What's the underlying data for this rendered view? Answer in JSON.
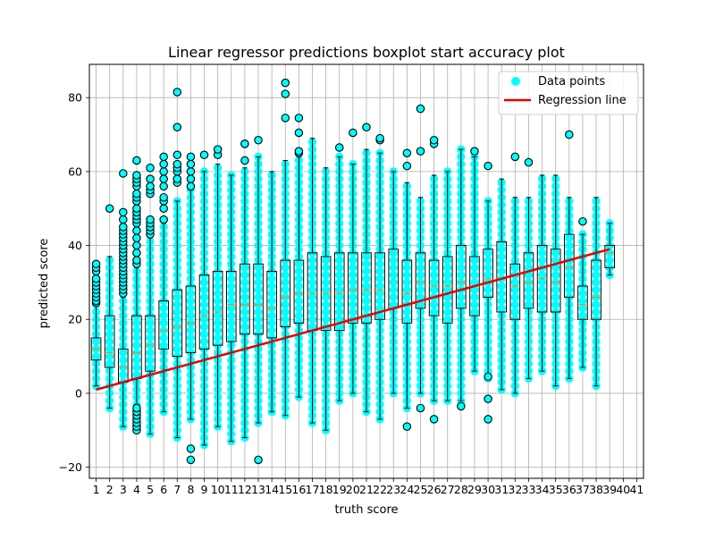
{
  "chart_data": {
    "type": "box",
    "title": "Linear regressor predictions boxplot start accuracy plot",
    "xlabel": "truth score",
    "ylabel": "predicted score",
    "x_ticks": [
      1,
      2,
      3,
      4,
      5,
      6,
      7,
      8,
      9,
      10,
      11,
      12,
      13,
      14,
      15,
      16,
      17,
      18,
      19,
      20,
      21,
      22,
      23,
      24,
      25,
      26,
      27,
      28,
      29,
      30,
      31,
      32,
      33,
      34,
      35,
      36,
      37,
      38,
      39,
      40,
      41
    ],
    "y_ticks": [
      -20,
      0,
      20,
      40,
      60,
      80
    ],
    "xlim": [
      0.5,
      41.5
    ],
    "ylim": [
      -23,
      89
    ],
    "grid": true,
    "legend": {
      "position": "top-right",
      "entries": [
        {
          "label": "Data points",
          "marker": "circle",
          "color": "#00ffff"
        },
        {
          "label": "Regression line",
          "marker": "line",
          "color": "#e00000"
        }
      ]
    },
    "colors": {
      "points": "#00ffff",
      "box": "#000000",
      "median": "#ff7f0e",
      "regression": "#e00000"
    },
    "boxes": [
      {
        "x": 1,
        "q1": 9,
        "median": 12,
        "q3": 15,
        "whislo": 2,
        "whishi": 24,
        "fliers": [
          24.5,
          25,
          26,
          27,
          28,
          29,
          30,
          31,
          33,
          34,
          35
        ]
      },
      {
        "x": 2,
        "q1": 7,
        "median": 11,
        "q3": 21,
        "whislo": -4,
        "whishi": 37,
        "fliers": [
          50
        ]
      },
      {
        "x": 3,
        "q1": 3,
        "median": 7,
        "q3": 12,
        "whislo": -9,
        "whishi": 26,
        "fliers": [
          27,
          28,
          29,
          30,
          31,
          32,
          33,
          34,
          35,
          36,
          37,
          38,
          39,
          40,
          41,
          42,
          43,
          44,
          45,
          47,
          49,
          59.5
        ]
      },
      {
        "x": 4,
        "q1": 4,
        "median": 11,
        "q3": 21,
        "whislo": -3,
        "whishi": 34,
        "fliers": [
          -10,
          -9,
          -8,
          -7,
          -6,
          -5,
          -4,
          35,
          36,
          38,
          40,
          42,
          44,
          46,
          47,
          48,
          49,
          50,
          52,
          53,
          54,
          56,
          57,
          58,
          59,
          63
        ]
      },
      {
        "x": 5,
        "q1": 6,
        "median": 13,
        "q3": 21,
        "whislo": -11,
        "whishi": 42,
        "fliers": [
          43,
          44,
          45,
          46,
          47,
          54,
          55,
          56,
          58,
          61
        ]
      },
      {
        "x": 6,
        "q1": 12,
        "median": 17,
        "q3": 25,
        "whislo": -5,
        "whishi": 46,
        "fliers": [
          47,
          50,
          52,
          53,
          56,
          58,
          60,
          62,
          64
        ]
      },
      {
        "x": 7,
        "q1": 10,
        "median": 18,
        "q3": 28,
        "whislo": -12,
        "whishi": 52,
        "fliers": [
          57,
          58,
          60,
          61,
          62,
          64.5,
          72,
          81.5
        ]
      },
      {
        "x": 8,
        "q1": 11,
        "median": 19,
        "q3": 29,
        "whislo": -7,
        "whishi": 55,
        "fliers": [
          -18,
          -15,
          56,
          58,
          60,
          62,
          64
        ]
      },
      {
        "x": 9,
        "q1": 12,
        "median": 21,
        "q3": 32,
        "whislo": -14,
        "whishi": 60,
        "fliers": [
          64.5
        ]
      },
      {
        "x": 10,
        "q1": 13,
        "median": 22,
        "q3": 33,
        "whislo": -9,
        "whishi": 62,
        "fliers": [
          64.5,
          66
        ]
      },
      {
        "x": 11,
        "q1": 14,
        "median": 24,
        "q3": 33,
        "whislo": -13,
        "whishi": 59,
        "fliers": []
      },
      {
        "x": 12,
        "q1": 16,
        "median": 24,
        "q3": 35,
        "whislo": -12,
        "whishi": 61,
        "fliers": [
          63,
          67.5,
          67.5
        ]
      },
      {
        "x": 13,
        "q1": 16,
        "median": 24,
        "q3": 35,
        "whislo": -8,
        "whishi": 64,
        "fliers": [
          -18,
          68.5
        ]
      },
      {
        "x": 14,
        "q1": 15,
        "median": 23,
        "q3": 33,
        "whislo": -5,
        "whishi": 60,
        "fliers": []
      },
      {
        "x": 15,
        "q1": 18,
        "median": 26,
        "q3": 36,
        "whislo": -6,
        "whishi": 63,
        "fliers": [
          74.5,
          81,
          84
        ]
      },
      {
        "x": 16,
        "q1": 19,
        "median": 27,
        "q3": 36,
        "whislo": -1,
        "whishi": 64,
        "fliers": [
          65,
          65.5,
          70.5,
          74.5
        ]
      },
      {
        "x": 17,
        "q1": 17,
        "median": 27,
        "q3": 38,
        "whislo": -8,
        "whishi": 69,
        "fliers": []
      },
      {
        "x": 18,
        "q1": 17,
        "median": 27,
        "q3": 37,
        "whislo": -10,
        "whishi": 61,
        "fliers": []
      },
      {
        "x": 19,
        "q1": 17,
        "median": 27,
        "q3": 38,
        "whislo": -2,
        "whishi": 64,
        "fliers": [
          66.5
        ]
      },
      {
        "x": 20,
        "q1": 19,
        "median": 28,
        "q3": 38,
        "whislo": 0,
        "whishi": 62,
        "fliers": [
          70.5
        ]
      },
      {
        "x": 21,
        "q1": 19,
        "median": 28,
        "q3": 38,
        "whislo": -5,
        "whishi": 66,
        "fliers": [
          72
        ]
      },
      {
        "x": 22,
        "q1": 20,
        "median": 28,
        "q3": 38,
        "whislo": -7,
        "whishi": 65,
        "fliers": [
          68.5,
          69
        ]
      },
      {
        "x": 23,
        "q1": 23,
        "median": 23,
        "q3": 39,
        "whislo": 0,
        "whishi": 60,
        "fliers": []
      },
      {
        "x": 24,
        "q1": 19,
        "median": 27,
        "q3": 36,
        "whislo": -4,
        "whishi": 57,
        "fliers": [
          -9,
          61.5,
          65
        ]
      },
      {
        "x": 25,
        "q1": 23,
        "median": 30,
        "q3": 38,
        "whislo": 0,
        "whishi": 53,
        "fliers": [
          -4,
          65.5,
          77
        ]
      },
      {
        "x": 26,
        "q1": 21,
        "median": 29,
        "q3": 36,
        "whislo": -2,
        "whishi": 59,
        "fliers": [
          -7,
          67.5,
          68.5
        ]
      },
      {
        "x": 27,
        "q1": 19,
        "median": 29,
        "q3": 37,
        "whislo": -2,
        "whishi": 60,
        "fliers": []
      },
      {
        "x": 28,
        "q1": 23,
        "median": 30,
        "q3": 40,
        "whislo": -2,
        "whishi": 66,
        "fliers": [
          -3.5
        ]
      },
      {
        "x": 29,
        "q1": 21,
        "median": 29,
        "q3": 37,
        "whislo": 6,
        "whishi": 64,
        "fliers": [
          65.5
        ]
      },
      {
        "x": 30,
        "q1": 26,
        "median": 31,
        "q3": 39,
        "whislo": 4,
        "whishi": 52,
        "fliers": [
          -7,
          -1.5,
          4.5,
          61.5
        ]
      },
      {
        "x": 31,
        "q1": 22,
        "median": 31,
        "q3": 41,
        "whislo": 1,
        "whishi": 58,
        "fliers": []
      },
      {
        "x": 32,
        "q1": 20,
        "median": 29,
        "q3": 35,
        "whislo": 0,
        "whishi": 53,
        "fliers": [
          64
        ]
      },
      {
        "x": 33,
        "q1": 23,
        "median": 30,
        "q3": 38,
        "whislo": 4,
        "whishi": 53,
        "fliers": [
          62.5
        ]
      },
      {
        "x": 34,
        "q1": 22,
        "median": 31,
        "q3": 40,
        "whislo": 6,
        "whishi": 59,
        "fliers": []
      },
      {
        "x": 35,
        "q1": 22,
        "median": 30,
        "q3": 39,
        "whislo": 2,
        "whishi": 59,
        "fliers": []
      },
      {
        "x": 36,
        "q1": 26,
        "median": 34,
        "q3": 43,
        "whislo": 4,
        "whishi": 53,
        "fliers": [
          70
        ]
      },
      {
        "x": 37,
        "q1": 20,
        "median": 24,
        "q3": 29,
        "whislo": 7,
        "whishi": 43,
        "fliers": [
          46.5
        ]
      },
      {
        "x": 38,
        "q1": 20,
        "median": 26,
        "q3": 36,
        "whislo": 2,
        "whishi": 53,
        "fliers": []
      },
      {
        "x": 39,
        "q1": 34,
        "median": 38,
        "q3": 40,
        "whislo": 32,
        "whishi": 46,
        "fliers": []
      }
    ],
    "regression_line": {
      "x": [
        1,
        39
      ],
      "y": [
        1,
        39
      ]
    }
  }
}
